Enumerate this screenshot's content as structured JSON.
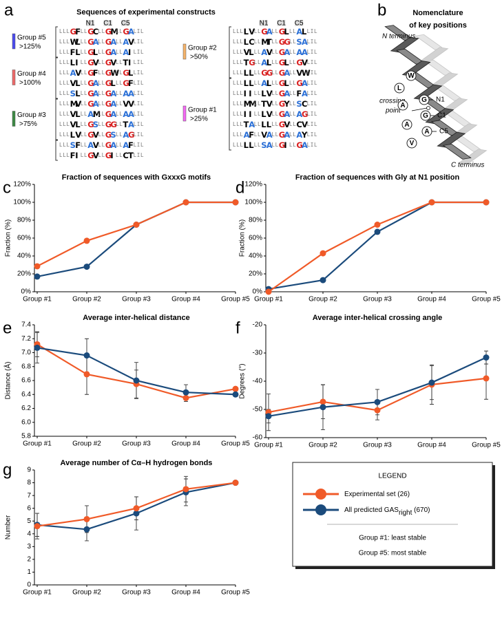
{
  "panel_labels": [
    "a",
    "b",
    "c",
    "d",
    "e",
    "f",
    "g"
  ],
  "panel_a": {
    "title": "Sequences of experimental constructs",
    "position_labels": [
      "N1",
      "C1",
      "C5"
    ],
    "columns": [
      [
        {
          "name": "Group #5",
          "threshold": ">125%",
          "color": "#4a4af0",
          "sequences": [
            "LLLGFLLGCLLGMLLGALIL",
            "LLLWLLLGALLGALLAVLIL",
            "LLLFLLLGLLLGALLAILIL"
          ]
        },
        {
          "name": "Group #4",
          "threshold": ">100%",
          "color": "#ee6a6a",
          "sequences": [
            "LLLLILLGVLLGVLLTILIL",
            "LLLAVLLGFLLGWLLGLLIL",
            "LLLVLLLGALLGLLLGFLIL",
            "LLLSLLLGALLGALLAALIL"
          ]
        },
        {
          "name": "Group #3",
          "threshold": ">75%",
          "color": "#3d8a44",
          "sequences": [
            "LLLMVLLGALLGALLVVLIL",
            "LLLVLLLAMLLGALLAALIL",
            "LLLVLLLGSLLGGLLTALIL",
            "LLLLVLLGVLLGSLLAGLIL"
          ]
        },
        {
          "sequences": [
            "LLLSFLLAVLLGALLAFLIL",
            "LLLFILLGVLLGILLCTLIL"
          ]
        }
      ],
      [
        {
          "name": "Group #2",
          "threshold": ">50%",
          "color": "#f5b36a",
          "sequences": [
            "LLLLVLLGALLGLLLALLIL",
            "LLLLCLLMTLLGGLLSALIL",
            "LLLVLLLAVLLGALLAALIL",
            "LLLTGLLALLLGLLLGVLIL",
            "LLLLLLLGGLLGALLVWLIL"
          ]
        },
        {
          "name": "Group #1",
          "threshold": ">25%",
          "color": "#f46af4",
          "sequences": [
            "LLLLLLLALLLGLLLGALIL",
            "LLLIILLLVLLGALLFALIL",
            "LLLMMLLTVLLGYLLSCLIL",
            "LLLIILLLVLLGALLAGLIL",
            "LLLTALLLLLLGVLLCVLIL",
            "LLLAFLLVALLGALLAYLIL",
            "LLLLLLLSALLGILLGALIL"
          ]
        }
      ]
    ]
  },
  "panel_b": {
    "title": [
      "Nomenclature",
      "of key positions"
    ],
    "n_terminus": "N terminus",
    "c_terminus": "C terminus",
    "crossing_point": [
      "crossing",
      "point"
    ],
    "residues": [
      "W",
      "L",
      "G",
      "A",
      "G",
      "A",
      "A",
      "V"
    ],
    "positions": [
      "N1",
      "C1",
      "C5"
    ]
  },
  "chart_data": [
    {
      "type": "line",
      "title": "Fraction of sequences with GxxxG motifs",
      "y_label": "Fraction (%)",
      "categories": [
        "Group #1",
        "Group #2",
        "Group #3",
        "Group #4",
        "Group #5"
      ],
      "ylim": [
        0,
        120
      ],
      "yticks": [
        {
          "value": 0,
          "label": "0%"
        },
        {
          "value": 20,
          "label": "20%"
        },
        {
          "value": 40,
          "label": "40%"
        },
        {
          "value": 60,
          "label": "60%"
        },
        {
          "value": 80,
          "label": "80%"
        },
        {
          "value": 100,
          "label": "100%"
        },
        {
          "value": 120,
          "label": "120%"
        }
      ],
      "series": [
        {
          "color": "#1b4b7c",
          "values": [
            17,
            28,
            75,
            100,
            100
          ]
        },
        {
          "color": "#f05a28",
          "values": [
            28.5,
            57,
            75,
            100,
            100
          ]
        }
      ]
    },
    {
      "type": "line",
      "title": "Fraction of sequences with Gly at N1 position",
      "y_label": "Fraction (%)",
      "categories": [
        "Group #1",
        "Group #2",
        "Group #3",
        "Group #4",
        "Group #5"
      ],
      "ylim": [
        0,
        120
      ],
      "yticks": [
        {
          "value": 0,
          "label": "0%"
        },
        {
          "value": 20,
          "label": "20%"
        },
        {
          "value": 40,
          "label": "40%"
        },
        {
          "value": 60,
          "label": "60%"
        },
        {
          "value": 80,
          "label": "80%"
        },
        {
          "value": 100,
          "label": "100%"
        },
        {
          "value": 120,
          "label": "120%"
        }
      ],
      "series": [
        {
          "color": "#1b4b7c",
          "values": [
            3,
            13,
            67,
            100,
            100
          ]
        },
        {
          "color": "#f05a28",
          "values": [
            0,
            43,
            75,
            100,
            100
          ]
        }
      ]
    },
    {
      "type": "line",
      "title": "Average inter-helical distance",
      "y_label": "Distance (Å)",
      "categories": [
        "Group #1",
        "Group #2",
        "Group #3",
        "Group #4",
        "Group #5"
      ],
      "ylim": [
        5.8,
        7.4
      ],
      "yticks": [
        5.8,
        {
          "value": 6,
          "label": "6.0"
        },
        6.2,
        6.4,
        6.6,
        6.8,
        {
          "value": 7,
          "label": "7.0"
        },
        7.2,
        7.4
      ],
      "series": [
        {
          "color": "#f05a28",
          "values": [
            7.12,
            6.69,
            6.55,
            6.35,
            6.48
          ],
          "errors": [
            0.18,
            0.29,
            0.2,
            0.05,
            0.02
          ]
        },
        {
          "color": "#1b4b7c",
          "values": [
            7.07,
            6.96,
            6.6,
            6.43,
            6.4
          ],
          "errors": [
            0.22,
            0.24,
            0.26,
            0.11,
            0.03
          ]
        }
      ]
    },
    {
      "type": "line",
      "title": "Average inter-helical crossing angle",
      "y_label": "Degrees (°)",
      "categories": [
        "Group #1",
        "Group #2",
        "Group #3",
        "Group #4",
        "Group #5"
      ],
      "ylim": [
        -60,
        -20
      ],
      "yticks": [
        -60,
        -50,
        -40,
        -30,
        -20
      ],
      "series": [
        {
          "color": "#f05a28",
          "values": [
            -51,
            -47.3,
            -50.3,
            -41.2,
            -39
          ],
          "errors": [
            6.5,
            6,
            3.4,
            7,
            7.4
          ]
        },
        {
          "color": "#1b4b7c",
          "values": [
            -52.4,
            -49.2,
            -47.4,
            -40.5,
            -31.6
          ],
          "errors": [
            2.4,
            8,
            4.5,
            6,
            2.3
          ]
        }
      ]
    },
    {
      "type": "line",
      "title": "Average number of Cα–H hydrogen bonds",
      "y_label": "Number",
      "categories": [
        "Group #1",
        "Group #2",
        "Group #3",
        "Group #4",
        "Group #5"
      ],
      "ylim": [
        0,
        9
      ],
      "yticks": [
        0,
        1,
        2,
        3,
        4,
        5,
        6,
        7,
        8,
        9
      ],
      "series": [
        {
          "color": "#1b4b7c",
          "values": [
            4.7,
            4.35,
            5.6,
            7.25,
            8.0
          ],
          "errors": [
            0.9,
            0.9,
            1.3,
            1.05,
            0.02
          ]
        },
        {
          "color": "#f05a28",
          "values": [
            4.6,
            5.15,
            6.0,
            7.5,
            8.0
          ],
          "errors": [
            1.0,
            1.05,
            0.9,
            1.0,
            0.02
          ]
        }
      ]
    }
  ],
  "legend": {
    "title": "LEGEND",
    "entries": [
      {
        "text": "Experimental set (26)",
        "color": "#f05a28"
      },
      {
        "text": "All predicted GAS",
        "subscript": "right",
        "suffix": " (670)",
        "color": "#1b4b7c"
      }
    ],
    "notes": [
      "Group #1: least stable",
      "Group #5: most stable"
    ]
  }
}
